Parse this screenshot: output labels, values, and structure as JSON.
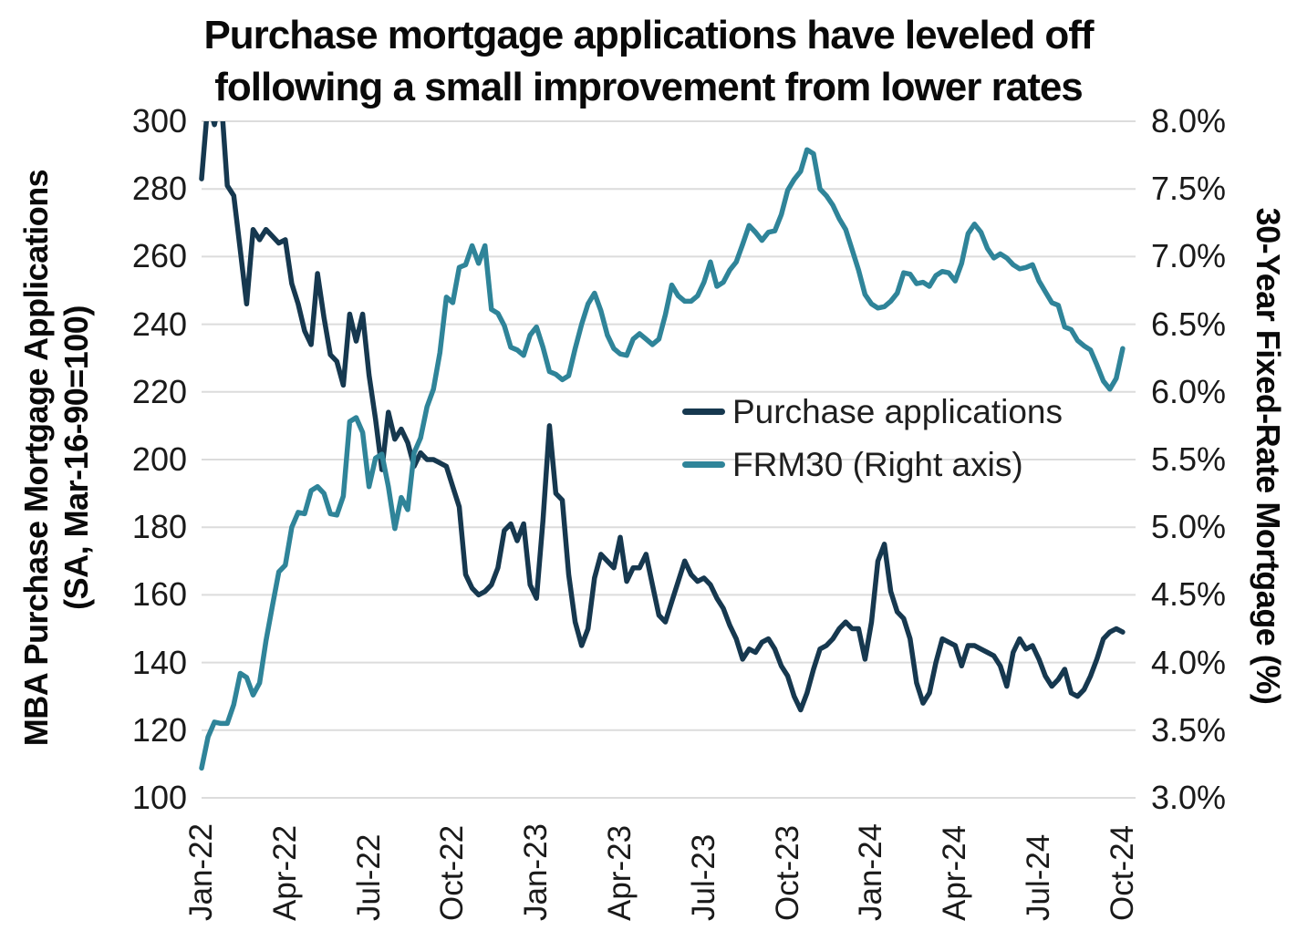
{
  "title": {
    "line1": "Purchase mortgage applications have leveled off",
    "line2": "following a small improvement from lower rates"
  },
  "chart_data": {
    "type": "line",
    "frequency": "weekly",
    "background": "#FFFFFF",
    "grid": {
      "show": true,
      "color": "#DCDCDC",
      "orientation": "horizontal"
    },
    "title": "Purchase mortgage applications have leveled off following a small improvement from lower rates",
    "x_tick_labels": [
      "Jan-22",
      "Apr-22",
      "Jul-22",
      "Oct-22",
      "Jan-23",
      "Apr-23",
      "Jul-23",
      "Oct-23",
      "Jan-24",
      "Apr-24",
      "Jul-24",
      "Oct-24"
    ],
    "x_tick_weeks": [
      0,
      13,
      26,
      39,
      52,
      65,
      78,
      91,
      104,
      117,
      130,
      143
    ],
    "x_domain_weeks": [
      0,
      145
    ],
    "left_axis": {
      "label_line1": "MBA Purchase Mortgage Applications",
      "label_line2": "(SA, Mar-16-90=100)",
      "min": 100,
      "max": 300,
      "tick_step": 20,
      "tick_labels": [
        "300",
        "280",
        "260",
        "240",
        "220",
        "200",
        "180",
        "160",
        "140",
        "120",
        "100"
      ]
    },
    "right_axis": {
      "label": "30-Year Fixed-Rate Mortgage (%)",
      "min": 3.0,
      "max": 8.0,
      "tick_step": 0.5,
      "tick_labels": [
        "8.0%",
        "7.5%",
        "7.0%",
        "6.5%",
        "6.0%",
        "5.5%",
        "5.0%",
        "4.5%",
        "4.0%",
        "3.5%",
        "3.0%"
      ]
    },
    "legend_position": "center-right",
    "series": [
      {
        "name": "Purchase applications",
        "axis": "left",
        "color": "#16384F",
        "line_width": 5.5,
        "values": [
          283,
          306,
          299,
          308,
          281,
          278,
          262,
          246,
          268,
          265,
          268,
          266,
          264,
          265,
          252,
          246,
          238,
          234,
          255,
          242,
          231,
          229,
          222,
          243,
          235,
          243,
          225,
          212,
          197,
          214,
          206,
          209,
          205,
          198,
          202,
          200,
          200,
          199,
          198,
          192,
          186,
          166,
          162,
          160,
          161,
          163,
          168,
          179,
          181,
          176,
          181,
          163,
          159,
          182,
          210,
          190,
          188,
          166,
          152,
          145,
          150,
          165,
          172,
          170,
          168,
          177,
          164,
          168,
          168,
          172,
          163,
          154,
          152,
          158,
          164,
          170,
          166,
          164,
          165,
          163,
          159,
          156,
          151,
          147,
          141,
          144,
          143,
          146,
          147,
          144,
          139,
          136,
          130,
          126,
          131,
          138,
          144,
          145,
          147,
          150,
          152,
          150,
          150,
          141,
          152,
          170,
          175,
          161,
          155,
          153,
          147,
          134,
          128,
          131,
          140,
          147,
          146,
          145,
          139,
          145,
          145,
          144,
          143,
          142,
          139,
          133,
          143,
          147,
          144,
          145,
          141,
          136,
          133,
          135,
          138,
          131,
          130,
          132,
          136,
          141,
          147,
          149,
          150,
          149
        ]
      },
      {
        "name": "FRM30 (Right axis)",
        "axis": "right",
        "color": "#2F8499",
        "line_width": 5.5,
        "values": [
          3.22,
          3.45,
          3.56,
          3.55,
          3.55,
          3.69,
          3.92,
          3.89,
          3.76,
          3.85,
          4.16,
          4.42,
          4.67,
          4.72,
          5.0,
          5.11,
          5.1,
          5.27,
          5.3,
          5.25,
          5.1,
          5.09,
          5.23,
          5.78,
          5.81,
          5.7,
          5.3,
          5.51,
          5.54,
          5.3,
          4.99,
          5.22,
          5.13,
          5.55,
          5.66,
          5.89,
          6.02,
          6.29,
          6.7,
          6.66,
          6.92,
          6.94,
          7.08,
          6.95,
          7.08,
          6.61,
          6.58,
          6.49,
          6.33,
          6.31,
          6.27,
          6.42,
          6.48,
          6.33,
          6.15,
          6.13,
          6.09,
          6.12,
          6.32,
          6.5,
          6.65,
          6.73,
          6.6,
          6.42,
          6.32,
          6.28,
          6.27,
          6.39,
          6.43,
          6.39,
          6.35,
          6.39,
          6.57,
          6.79,
          6.71,
          6.67,
          6.67,
          6.71,
          6.81,
          6.96,
          6.78,
          6.81,
          6.9,
          6.96,
          7.09,
          7.23,
          7.18,
          7.12,
          7.18,
          7.19,
          7.31,
          7.49,
          7.57,
          7.63,
          7.79,
          7.76,
          7.5,
          7.45,
          7.38,
          7.28,
          7.2,
          7.05,
          6.9,
          6.72,
          6.65,
          6.62,
          6.63,
          6.67,
          6.73,
          6.88,
          6.87,
          6.8,
          6.81,
          6.78,
          6.86,
          6.89,
          6.88,
          6.82,
          6.95,
          7.17,
          7.24,
          7.18,
          7.06,
          6.99,
          7.02,
          6.99,
          6.94,
          6.91,
          6.92,
          6.94,
          6.82,
          6.74,
          6.66,
          6.64,
          6.48,
          6.46,
          6.38,
          6.34,
          6.31,
          6.2,
          6.08,
          6.02,
          6.1,
          6.32
        ]
      }
    ]
  }
}
